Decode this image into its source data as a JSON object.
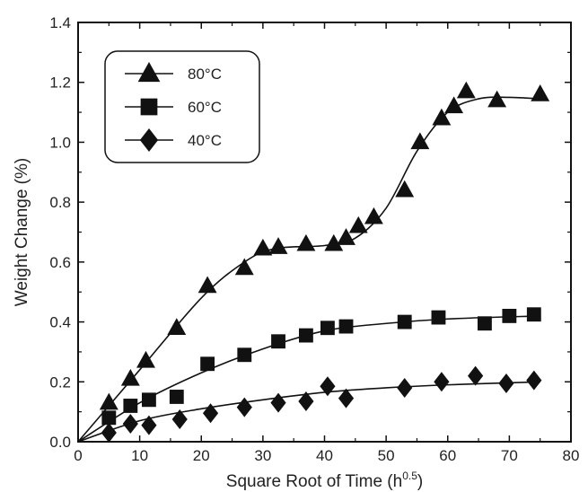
{
  "chart_data": {
    "type": "scatter",
    "xlabel": "Square Root of Time (h",
    "xlabel_sup": "0.5",
    "xlabel_end": ")",
    "ylabel": "Weight Change (%)",
    "xlim": [
      0,
      80
    ],
    "ylim": [
      0,
      1.4
    ],
    "xticks": [
      "0",
      "10",
      "20",
      "30",
      "40",
      "50",
      "60",
      "70",
      "80"
    ],
    "yticks": [
      "0.0",
      "0.2",
      "0.4",
      "0.6",
      "0.8",
      "1.0",
      "1.2",
      "1.4"
    ],
    "grid": false,
    "legend_position": "top-left",
    "color": "#111111",
    "series": [
      {
        "name": "80°C",
        "marker": "triangle",
        "points": [
          [
            5,
            0.13
          ],
          [
            8.5,
            0.21
          ],
          [
            11,
            0.27
          ],
          [
            16,
            0.38
          ],
          [
            21,
            0.52
          ],
          [
            27,
            0.58
          ],
          [
            30,
            0.645
          ],
          [
            32.5,
            0.65
          ],
          [
            37,
            0.66
          ],
          [
            41.5,
            0.66
          ],
          [
            43.5,
            0.68
          ],
          [
            45.5,
            0.72
          ],
          [
            48,
            0.75
          ],
          [
            53,
            0.84
          ],
          [
            55.5,
            1.0
          ],
          [
            59,
            1.08
          ],
          [
            61,
            1.12
          ],
          [
            63,
            1.17
          ],
          [
            68,
            1.14
          ],
          [
            75,
            1.16
          ]
        ],
        "curve": [
          [
            0,
            0
          ],
          [
            10,
            0.24
          ],
          [
            20,
            0.48
          ],
          [
            27,
            0.6
          ],
          [
            32,
            0.645
          ],
          [
            40,
            0.655
          ],
          [
            45,
            0.68
          ],
          [
            50,
            0.78
          ],
          [
            55,
            0.97
          ],
          [
            60,
            1.1
          ],
          [
            65,
            1.145
          ],
          [
            70,
            1.15
          ],
          [
            75,
            1.145
          ]
        ]
      },
      {
        "name": "60°C",
        "marker": "square",
        "points": [
          [
            5,
            0.08
          ],
          [
            8.5,
            0.12
          ],
          [
            11.5,
            0.14
          ],
          [
            16,
            0.15
          ],
          [
            21,
            0.26
          ],
          [
            27,
            0.29
          ],
          [
            32.5,
            0.335
          ],
          [
            37,
            0.355
          ],
          [
            40.5,
            0.38
          ],
          [
            43.5,
            0.385
          ],
          [
            53,
            0.4
          ],
          [
            58.5,
            0.415
          ],
          [
            66,
            0.395
          ],
          [
            70,
            0.42
          ],
          [
            74,
            0.425
          ]
        ],
        "curve": [
          [
            0,
            0
          ],
          [
            10,
            0.13
          ],
          [
            20,
            0.23
          ],
          [
            30,
            0.31
          ],
          [
            40,
            0.37
          ],
          [
            50,
            0.395
          ],
          [
            60,
            0.41
          ],
          [
            75,
            0.42
          ]
        ]
      },
      {
        "name": "40°C",
        "marker": "diamond",
        "points": [
          [
            5,
            0.03
          ],
          [
            8.5,
            0.06
          ],
          [
            11.5,
            0.055
          ],
          [
            16.5,
            0.075
          ],
          [
            21.5,
            0.095
          ],
          [
            27,
            0.115
          ],
          [
            32.5,
            0.13
          ],
          [
            37,
            0.135
          ],
          [
            40.5,
            0.185
          ],
          [
            43.5,
            0.145
          ],
          [
            53,
            0.18
          ],
          [
            59,
            0.2
          ],
          [
            64.5,
            0.22
          ],
          [
            69.5,
            0.195
          ],
          [
            74,
            0.205
          ]
        ],
        "curve": [
          [
            0,
            0
          ],
          [
            10,
            0.07
          ],
          [
            20,
            0.11
          ],
          [
            30,
            0.14
          ],
          [
            40,
            0.165
          ],
          [
            50,
            0.18
          ],
          [
            60,
            0.19
          ],
          [
            75,
            0.2
          ]
        ]
      }
    ]
  }
}
